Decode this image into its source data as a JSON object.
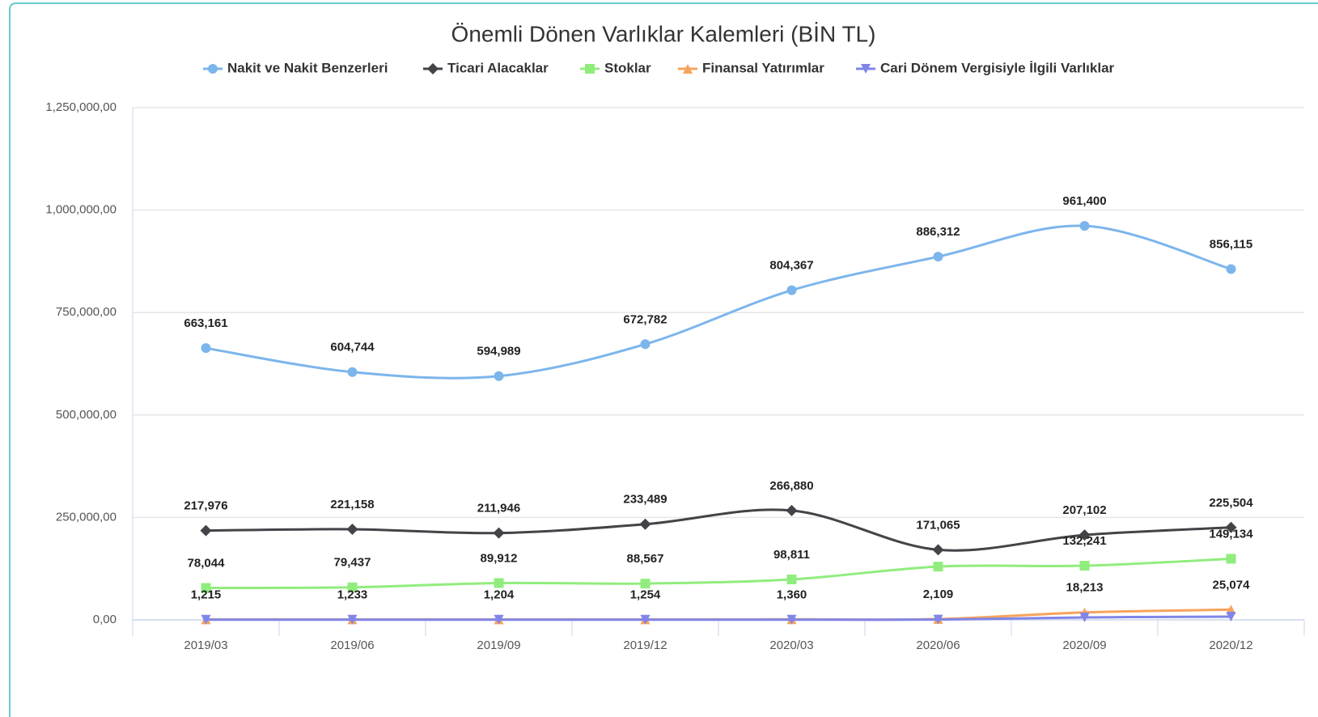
{
  "chart_data": {
    "type": "line",
    "title": "Önemli Dönen Varlıklar Kalemleri (BİN TL)",
    "categories": [
      "2019/03",
      "2019/06",
      "2019/09",
      "2019/12",
      "2020/03",
      "2020/06",
      "2020/09",
      "2020/12"
    ],
    "ylim": [
      0,
      1250000
    ],
    "yticks": [
      {
        "value": 0,
        "label": "0,00"
      },
      {
        "value": 250000,
        "label": "250,000,00"
      },
      {
        "value": 500000,
        "label": "500,000,00"
      },
      {
        "value": 750000,
        "label": "750,000,00"
      },
      {
        "value": 1000000,
        "label": "1,000,000,00"
      },
      {
        "value": 1250000,
        "label": "1,250,000,00"
      }
    ],
    "grid": true,
    "legend": "top",
    "series": [
      {
        "name": "Nakit ve Nakit Benzerleri",
        "color": "#7cb5ec",
        "marker": "circle",
        "values": [
          663161,
          604744,
          594989,
          672782,
          804367,
          886312,
          961400,
          856115
        ],
        "value_labels": [
          "663,161",
          "604,744",
          "594,989",
          "672,782",
          "804,367",
          "886,312",
          "961,400",
          "856,115"
        ]
      },
      {
        "name": "Ticari Alacaklar",
        "color": "#434348",
        "marker": "diamond",
        "values": [
          217976,
          221158,
          211946,
          233489,
          266880,
          171065,
          207102,
          225504
        ],
        "value_labels": [
          "217,976",
          "221,158",
          "211,946",
          "233,489",
          "266,880",
          "171,065",
          "207,102",
          "225,504"
        ]
      },
      {
        "name": "Stoklar",
        "color": "#90ed7d",
        "marker": "square",
        "values": [
          78044,
          79437,
          89912,
          88567,
          98811,
          130000,
          132241,
          149134
        ],
        "value_labels": [
          "78,044",
          "79,437",
          "89,912",
          "88,567",
          "98,811",
          null,
          "132,241",
          "149,134"
        ]
      },
      {
        "name": "Finansal Yatırımlar",
        "color": "#f7a35c",
        "marker": "triangle",
        "values": [
          1215,
          1233,
          1204,
          1254,
          1360,
          2109,
          18213,
          25074
        ],
        "value_labels": [
          "1,215",
          "1,233",
          "1,204",
          "1,254",
          "1,360",
          "2,109",
          "18,213",
          "25,074"
        ]
      },
      {
        "name": "Cari Dönem Vergisiyle İlgili Varlıklar",
        "color": "#8085e9",
        "marker": "triangle-down",
        "values": [
          500,
          500,
          500,
          500,
          500,
          800,
          6000,
          8000
        ]
      }
    ]
  }
}
